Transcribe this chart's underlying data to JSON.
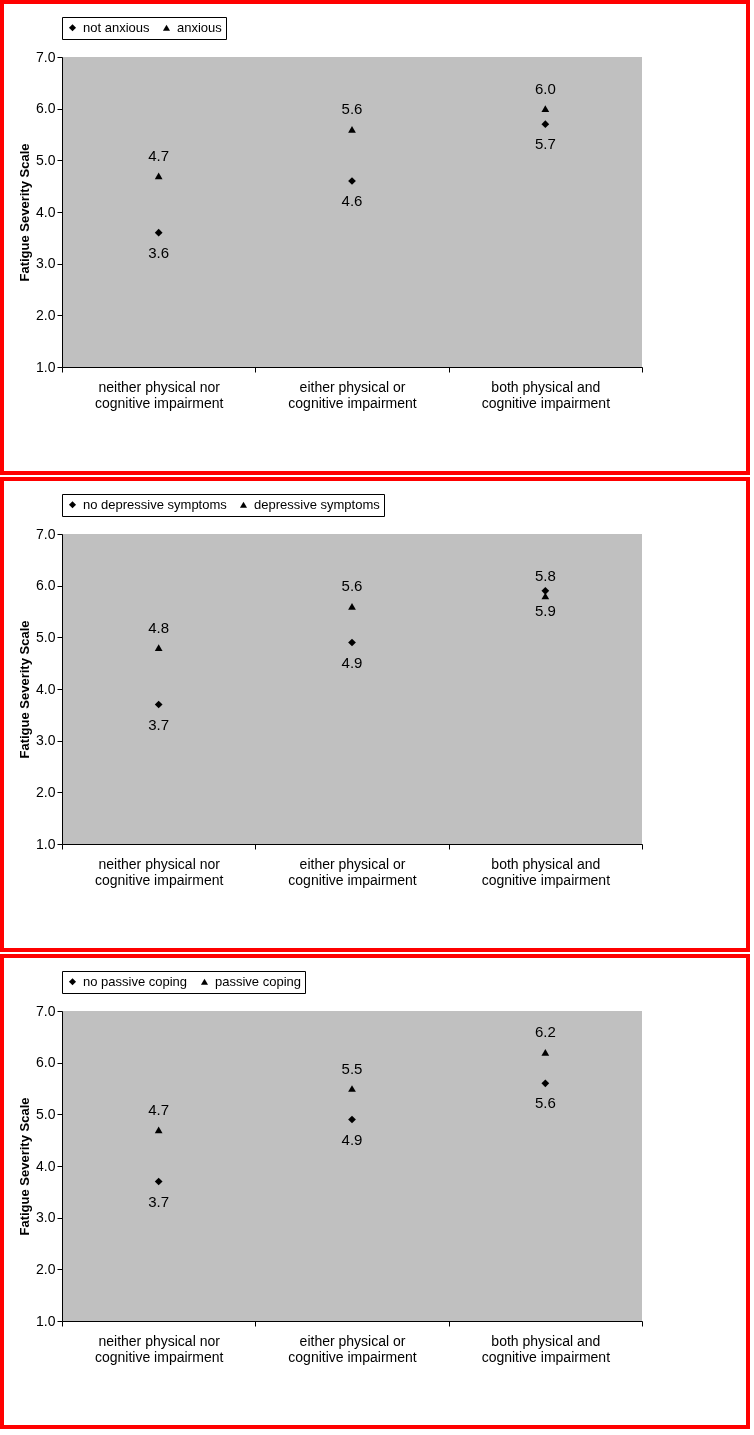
{
  "chart_data": [
    {
      "type": "scatter",
      "ylabel": "Fatigue Severity Scale",
      "categories": [
        "neither physical nor cognitive impairment",
        "either physical or cognitive impairment",
        "both physical and cognitive impairment"
      ],
      "ylim": [
        1,
        7
      ],
      "yticks": [
        {
          "value": 1,
          "label": "1.0"
        },
        {
          "value": 2,
          "label": "2.0"
        },
        {
          "value": 3,
          "label": "3.0"
        },
        {
          "value": 4,
          "label": "4.0"
        },
        {
          "value": 5,
          "label": "5.0"
        },
        {
          "value": 6,
          "label": "6.0"
        },
        {
          "value": 7,
          "label": "7.0"
        }
      ],
      "grid": false,
      "legend": "top",
      "series": [
        {
          "name": "not anxious",
          "color": "#000000",
          "marker": "diamond",
          "values": [
            3.6,
            4.6,
            5.7
          ],
          "value_labels": [
            "3.6",
            "4.6",
            "5.7"
          ]
        },
        {
          "name": "anxious",
          "color": "#000000",
          "marker": "triangle",
          "values": [
            4.7,
            5.6,
            6.0
          ],
          "value_labels": [
            "4.7",
            "5.6",
            "6.0"
          ]
        }
      ]
    },
    {
      "type": "scatter",
      "ylabel": "Fatigue Severity Scale",
      "categories": [
        "neither physical nor cognitive impairment",
        "either physical or cognitive impairment",
        "both physical and cognitive impairment"
      ],
      "ylim": [
        1,
        7
      ],
      "yticks": [
        {
          "value": 1,
          "label": "1.0"
        },
        {
          "value": 2,
          "label": "2.0"
        },
        {
          "value": 3,
          "label": "3.0"
        },
        {
          "value": 4,
          "label": "4.0"
        },
        {
          "value": 5,
          "label": "5.0"
        },
        {
          "value": 6,
          "label": "6.0"
        },
        {
          "value": 7,
          "label": "7.0"
        }
      ],
      "grid": false,
      "legend": "top",
      "series": [
        {
          "name": "no depressive symptoms",
          "color": "#000000",
          "marker": "diamond",
          "values": [
            3.7,
            4.9,
            5.9
          ],
          "value_labels": [
            "3.7",
            "4.9",
            "5.9"
          ]
        },
        {
          "name": "depressive symptoms",
          "color": "#000000",
          "marker": "triangle",
          "values": [
            4.8,
            5.6,
            5.8
          ],
          "value_labels": [
            "4.8",
            "5.6",
            "5.8"
          ]
        }
      ]
    },
    {
      "type": "scatter",
      "ylabel": "Fatigue Severity Scale",
      "categories": [
        "neither physical nor cognitive impairment",
        "either physical or cognitive impairment",
        "both physical and cognitive impairment"
      ],
      "ylim": [
        1,
        7
      ],
      "yticks": [
        {
          "value": 1,
          "label": "1.0"
        },
        {
          "value": 2,
          "label": "2.0"
        },
        {
          "value": 3,
          "label": "3.0"
        },
        {
          "value": 4,
          "label": "4.0"
        },
        {
          "value": 5,
          "label": "5.0"
        },
        {
          "value": 6,
          "label": "6.0"
        },
        {
          "value": 7,
          "label": "7.0"
        }
      ],
      "grid": false,
      "legend": "top",
      "series": [
        {
          "name": "no passive coping",
          "color": "#000000",
          "marker": "diamond",
          "values": [
            3.7,
            4.9,
            5.6
          ],
          "value_labels": [
            "3.7",
            "4.9",
            "5.6"
          ]
        },
        {
          "name": "passive coping",
          "color": "#000000",
          "marker": "triangle",
          "values": [
            4.7,
            5.5,
            6.2
          ],
          "value_labels": [
            "4.7",
            "5.5",
            "6.2"
          ]
        }
      ]
    }
  ]
}
